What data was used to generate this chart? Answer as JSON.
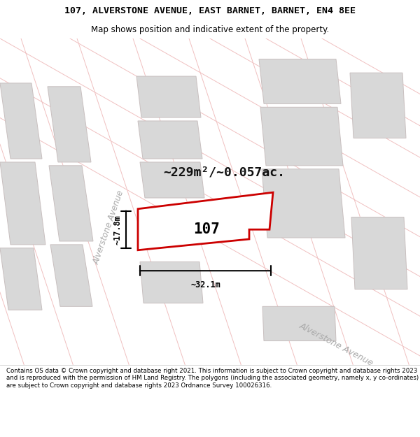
{
  "title_line1": "107, ALVERSTONE AVENUE, EAST BARNET, BARNET, EN4 8EE",
  "title_line2": "Map shows position and indicative extent of the property.",
  "area_text": "~229m²/~0.057ac.",
  "width_text": "~32.1m",
  "height_text": "~17.8m",
  "property_label": "107",
  "footer_text": "Contains OS data © Crown copyright and database right 2021. This information is subject to Crown copyright and database rights 2023 and is reproduced with the permission of HM Land Registry. The polygons (including the associated geometry, namely x, y co-ordinates) are subject to Crown copyright and database rights 2023 Ordnance Survey 100026316.",
  "map_bg": "#ffffff",
  "road_fill": "#f5e8e8",
  "road_line": "#f0c0c0",
  "block_color": "#d8d8d8",
  "block_edge": "#c8bfbf",
  "property_fill": "#ffffff",
  "property_edge": "#cc0000",
  "dim_color": "#000000",
  "street_color": "#aaaaaa",
  "title_fontsize": 9.5,
  "subtitle_fontsize": 8.5,
  "area_fontsize": 13,
  "label_fontsize": 15,
  "dim_fontsize": 8.5,
  "street_fontsize": 8.5,
  "footer_fontsize": 6.2
}
